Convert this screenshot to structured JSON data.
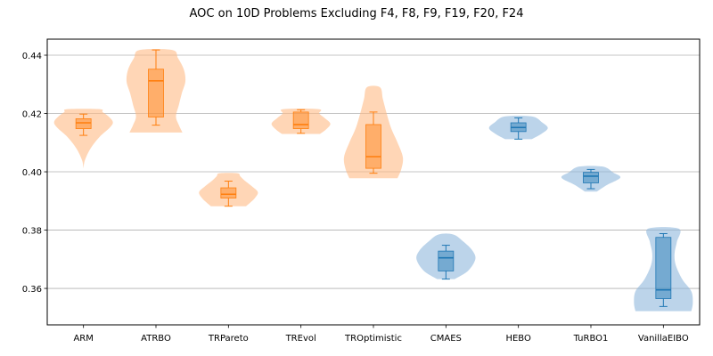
{
  "chart_data": {
    "type": "violin",
    "title": "AOC on 10D Problems Excluding F4, F8, F9, F19, F20, F24",
    "xlabel": "",
    "ylabel": "",
    "ylim": [
      0.3475,
      0.4455
    ],
    "yticks": [
      0.36,
      0.38,
      0.4,
      0.42,
      0.44
    ],
    "ytick_labels": [
      "0.36",
      "0.38",
      "0.40",
      "0.42",
      "0.44"
    ],
    "grid": "horizontal",
    "colors": {
      "orange_fill": "#ffbb85",
      "orange_line": "#ff7f0e",
      "blue_fill": "#8fb8dc",
      "blue_line": "#1f77b4"
    },
    "series": [
      {
        "category": "ARM",
        "color": "orange",
        "min": 0.4012,
        "max": 0.4215,
        "q1": 0.4148,
        "median": 0.4168,
        "q3": 0.4182,
        "whisker_low": 0.4125,
        "whisker_high": 0.4198,
        "density": [
          [
            0.4012,
            0.0
          ],
          [
            0.404,
            0.05
          ],
          [
            0.408,
            0.24
          ],
          [
            0.412,
            0.55
          ],
          [
            0.415,
            0.88
          ],
          [
            0.417,
            1.0
          ],
          [
            0.419,
            0.85
          ],
          [
            0.4205,
            0.65
          ],
          [
            0.4215,
            0.55
          ]
        ]
      },
      {
        "category": "ATRBO",
        "color": "orange",
        "min": 0.4135,
        "max": 0.4418,
        "q1": 0.4188,
        "median": 0.4312,
        "q3": 0.4352,
        "whisker_low": 0.416,
        "whisker_high": 0.4418,
        "density": [
          [
            0.4135,
            0.9
          ],
          [
            0.416,
            0.78
          ],
          [
            0.419,
            0.68
          ],
          [
            0.423,
            0.78
          ],
          [
            0.427,
            0.88
          ],
          [
            0.431,
            1.0
          ],
          [
            0.435,
            0.95
          ],
          [
            0.439,
            0.75
          ],
          [
            0.4418,
            0.55
          ]
        ]
      },
      {
        "category": "TRPareto",
        "color": "orange",
        "min": 0.3882,
        "max": 0.3995,
        "q1": 0.391,
        "median": 0.3923,
        "q3": 0.3945,
        "whisker_low": 0.3882,
        "whisker_high": 0.3968,
        "density": [
          [
            0.3882,
            0.6
          ],
          [
            0.3895,
            0.75
          ],
          [
            0.391,
            0.9
          ],
          [
            0.393,
            1.0
          ],
          [
            0.395,
            0.8
          ],
          [
            0.397,
            0.55
          ],
          [
            0.3985,
            0.4
          ],
          [
            0.3995,
            0.3
          ]
        ]
      },
      {
        "category": "TREvol",
        "color": "orange",
        "min": 0.413,
        "max": 0.4215,
        "q1": 0.4148,
        "median": 0.4162,
        "q3": 0.4205,
        "whisker_low": 0.4132,
        "whisker_high": 0.4213,
        "density": [
          [
            0.413,
            0.65
          ],
          [
            0.4145,
            0.85
          ],
          [
            0.4165,
            1.0
          ],
          [
            0.4185,
            0.8
          ],
          [
            0.42,
            0.62
          ],
          [
            0.4215,
            0.6
          ]
        ]
      },
      {
        "category": "TROptimistic",
        "color": "orange",
        "min": 0.3978,
        "max": 0.429,
        "q1": 0.4012,
        "median": 0.4052,
        "q3": 0.4162,
        "whisker_low": 0.3995,
        "whisker_high": 0.4205,
        "density": [
          [
            0.3978,
            0.82
          ],
          [
            0.401,
            0.95
          ],
          [
            0.405,
            1.0
          ],
          [
            0.41,
            0.82
          ],
          [
            0.415,
            0.6
          ],
          [
            0.42,
            0.45
          ],
          [
            0.425,
            0.32
          ],
          [
            0.429,
            0.22
          ]
        ]
      },
      {
        "category": "CMAES",
        "color": "blue",
        "min": 0.3632,
        "max": 0.3785,
        "q1": 0.366,
        "median": 0.3705,
        "q3": 0.3728,
        "whisker_low": 0.3632,
        "whisker_high": 0.3748,
        "density": [
          [
            0.3632,
            0.3
          ],
          [
            0.366,
            0.75
          ],
          [
            0.37,
            1.0
          ],
          [
            0.373,
            0.9
          ],
          [
            0.376,
            0.6
          ],
          [
            0.3785,
            0.25
          ]
        ]
      },
      {
        "category": "HEBO",
        "color": "blue",
        "min": 0.4112,
        "max": 0.419,
        "q1": 0.4138,
        "median": 0.4152,
        "q3": 0.4168,
        "whisker_low": 0.4112,
        "whisker_high": 0.4185,
        "density": [
          [
            0.4112,
            0.45
          ],
          [
            0.413,
            0.78
          ],
          [
            0.415,
            1.0
          ],
          [
            0.417,
            0.8
          ],
          [
            0.419,
            0.45
          ]
        ]
      },
      {
        "category": "TuRBO1",
        "color": "blue",
        "min": 0.3932,
        "max": 0.4018,
        "q1": 0.3962,
        "median": 0.3985,
        "q3": 0.3998,
        "whisker_low": 0.3942,
        "whisker_high": 0.4008,
        "density": [
          [
            0.3932,
            0.2
          ],
          [
            0.3955,
            0.55
          ],
          [
            0.398,
            1.0
          ],
          [
            0.3998,
            0.75
          ],
          [
            0.4018,
            0.4
          ]
        ]
      },
      {
        "category": "VanillaEIBO",
        "color": "blue",
        "min": 0.3522,
        "max": 0.3805,
        "q1": 0.3565,
        "median": 0.3595,
        "q3": 0.3775,
        "whisker_low": 0.3538,
        "whisker_high": 0.3788,
        "density": [
          [
            0.3522,
            0.95
          ],
          [
            0.355,
            1.0
          ],
          [
            0.359,
            0.95
          ],
          [
            0.363,
            0.65
          ],
          [
            0.368,
            0.42
          ],
          [
            0.372,
            0.38
          ],
          [
            0.376,
            0.46
          ],
          [
            0.3805,
            0.52
          ]
        ]
      }
    ]
  }
}
